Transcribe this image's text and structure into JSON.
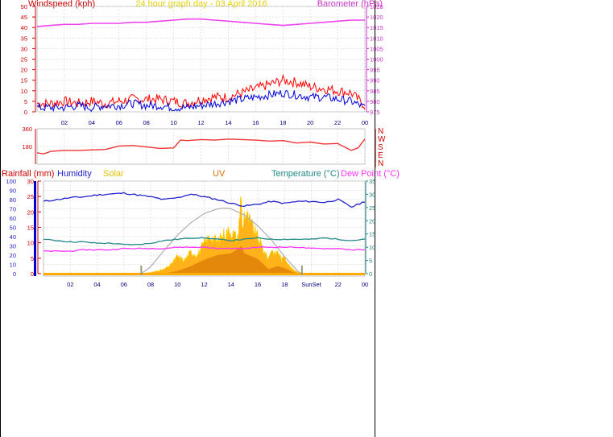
{
  "header": {
    "left_label": "Windspeed (kph)",
    "center_label": "24 hour graph day - 03 April 2016",
    "right_label": "Barometer (hPa)"
  },
  "colors": {
    "windspeed": "#cc0000",
    "gust": "#ff0000",
    "avg_wind": "#0000dd",
    "barometer": "#ee44ee",
    "direction": "#ee3333",
    "humidity": "#2222cc",
    "temperature": "#228888",
    "dewpoint": "#ff33ff",
    "solar_fill": "#ffaa00",
    "solar_line": "#ffcc00",
    "uv_fill": "#cc6600",
    "theoretical": "#b0b0b0",
    "rain": "#ffaa00",
    "grid": "#dddddd",
    "axis_wind": "#cc0000",
    "axis_baro": "#cc33cc",
    "axis_rain": "#cc0000",
    "axis_temp": "#228888",
    "xtick": "#000080",
    "marker": "#999977"
  },
  "panel3_legend": {
    "rainfall": "Rainfall (mm)",
    "humidity": "Humidity",
    "solar": "Solar",
    "uv": "UV",
    "temperature": "Temperature (°C)",
    "dewpoint": "Dew Point (°C)"
  },
  "markers": {
    "sunrise_label": "",
    "sunset_label": "SunSet"
  },
  "chart_data": [
    {
      "type": "line",
      "title": "24 hour graph day - 03 April 2016",
      "ylabel": "Windspeed (kph)",
      "y2label": "Barometer (hPa)",
      "x_ticks": [
        "02",
        "04",
        "06",
        "08",
        "10",
        "12",
        "14",
        "16",
        "18",
        "20",
        "22",
        "00"
      ],
      "ylim": [
        0,
        50
      ],
      "y_ticks": [
        0,
        5,
        10,
        15,
        20,
        25,
        30,
        35,
        40,
        45,
        50
      ],
      "y2lim": [
        975,
        1025
      ],
      "y2_ticks": [
        975,
        980,
        985,
        990,
        995,
        1000,
        1005,
        1010,
        1015,
        1020,
        1025
      ],
      "grid": true,
      "hours": [
        0,
        1,
        2,
        3,
        4,
        5,
        6,
        7,
        8,
        9,
        10,
        11,
        12,
        13,
        14,
        15,
        16,
        17,
        18,
        19,
        20,
        21,
        22,
        23,
        24
      ],
      "series": [
        {
          "key": "gust",
          "values": [
            4,
            4,
            5,
            4,
            5,
            4,
            5,
            6,
            6,
            6,
            5,
            4,
            6,
            7,
            7,
            9,
            11,
            13,
            15,
            14,
            12,
            11,
            10,
            9,
            3
          ]
        },
        {
          "key": "avg_wind",
          "values": [
            2,
            2,
            2,
            3,
            2,
            3,
            3,
            4,
            3,
            3,
            2,
            2,
            3,
            4,
            5,
            6,
            7,
            8,
            9,
            8,
            7,
            7,
            6,
            5,
            2
          ]
        },
        {
          "key": "barometer",
          "axis": "right",
          "values": [
            1015.5,
            1016,
            1016.5,
            1016.5,
            1017,
            1017,
            1017,
            1017.5,
            1017.5,
            1018,
            1018.5,
            1019,
            1019,
            1018.5,
            1018,
            1017.5,
            1017,
            1016.5,
            1016,
            1016.5,
            1017,
            1017.5,
            1018,
            1018.5,
            1018.5
          ]
        }
      ]
    },
    {
      "type": "line",
      "ylabel": "Wind direction",
      "right_labels": [
        "N",
        "W",
        "S",
        "E",
        "N"
      ],
      "ylim": [
        0,
        360
      ],
      "y_ticks": [
        0,
        180,
        360
      ],
      "grid": true,
      "hours": [
        0,
        0.5,
        1,
        2,
        3,
        4,
        5,
        6,
        7,
        8,
        9,
        10,
        10.5,
        11,
        12,
        13,
        14,
        15,
        16,
        17,
        18,
        19,
        20,
        21,
        22,
        23,
        23.5,
        24
      ],
      "series": [
        {
          "key": "direction",
          "values": [
            115,
            105,
            130,
            140,
            140,
            145,
            150,
            185,
            190,
            175,
            160,
            165,
            245,
            240,
            250,
            245,
            255,
            250,
            245,
            235,
            240,
            215,
            225,
            205,
            210,
            140,
            165,
            255
          ]
        }
      ]
    },
    {
      "type": "line",
      "ylabel": "Rainfall (mm)",
      "y2label": "Temperature (°C)",
      "x_ticks": [
        "02",
        "04",
        "06",
        "08",
        "10",
        "12",
        "14",
        "16",
        "18",
        "SunSet",
        "22",
        "00"
      ],
      "ylim_rain": [
        0,
        30
      ],
      "y_ticks_rain": [
        0,
        5,
        10,
        15,
        20,
        25,
        30
      ],
      "ylim_pct": [
        0,
        100
      ],
      "y_ticks_pct": [
        0,
        10,
        20,
        30,
        40,
        50,
        60,
        70,
        80,
        90,
        100
      ],
      "ylim_temp": [
        0,
        35
      ],
      "y_ticks_temp": [
        0,
        5,
        10,
        15,
        20,
        25,
        30,
        35
      ],
      "ylim_solar": [
        0,
        1200
      ],
      "grid": true,
      "hours": [
        0,
        1,
        2,
        3,
        4,
        5,
        6,
        7,
        8,
        9,
        10,
        11,
        12,
        13,
        14,
        15,
        16,
        17,
        18,
        19,
        20,
        21,
        22,
        23,
        24
      ],
      "series": [
        {
          "key": "humidity",
          "axis": "pct",
          "values": [
            78,
            80,
            82,
            83,
            85,
            86,
            87,
            85,
            83,
            80,
            82,
            86,
            83,
            80,
            76,
            73,
            75,
            78,
            76,
            78,
            78,
            77,
            80,
            72,
            78
          ]
        },
        {
          "key": "temperature",
          "axis": "temp",
          "values": [
            13,
            12.5,
            12,
            12,
            11.5,
            11.5,
            11,
            11,
            11.5,
            12.5,
            13,
            13.5,
            13.5,
            13,
            12.5,
            13,
            13.5,
            13,
            13,
            13,
            13,
            13.5,
            13,
            12.5,
            13
          ]
        },
        {
          "key": "dewpoint",
          "axis": "temp",
          "values": [
            8.5,
            8.5,
            8.5,
            9,
            9,
            9,
            9.5,
            9.5,
            9.5,
            9.5,
            10,
            10,
            10,
            9.5,
            9.5,
            9.5,
            10,
            10,
            10,
            10,
            9.5,
            9.5,
            9.5,
            9,
            9
          ]
        },
        {
          "key": "rain",
          "axis": "rain",
          "values": [
            0,
            0,
            0,
            0,
            0,
            0,
            0,
            0,
            0,
            0,
            0,
            0,
            0,
            0,
            0,
            0,
            0,
            0,
            0,
            0,
            0,
            0,
            0,
            0,
            0
          ]
        }
      ],
      "solar": {
        "hours": [
          7.3,
          8,
          9,
          9.5,
          10,
          10.5,
          11,
          11.5,
          12,
          12.5,
          13,
          13.5,
          14,
          14.5,
          14.75,
          14.85,
          15,
          15.5,
          16,
          16.5,
          16.8,
          17,
          17.3,
          17.5,
          17.8,
          18,
          18.3,
          18.6,
          19,
          19.3
        ],
        "values": [
          0,
          15,
          60,
          120,
          240,
          180,
          300,
          260,
          420,
          520,
          440,
          560,
          600,
          480,
          1080,
          560,
          860,
          680,
          500,
          300,
          200,
          350,
          260,
          320,
          180,
          260,
          120,
          60,
          20,
          0
        ]
      },
      "uv": {
        "hours": [
          9,
          10,
          11,
          12,
          13,
          14,
          14.8,
          15,
          16,
          16.8,
          17.5,
          18,
          18.6,
          19
        ],
        "values": [
          0,
          0.3,
          0.8,
          1.5,
          2,
          2.2,
          3,
          2.2,
          1.6,
          0.5,
          0.8,
          0.6,
          0.2,
          0
        ]
      },
      "theoretical": {
        "hours": [
          7.3,
          8,
          9,
          10,
          11,
          12,
          13,
          13.5,
          14,
          15,
          16,
          17,
          18,
          19,
          19.3
        ],
        "values": [
          0,
          90,
          300,
          500,
          660,
          780,
          840,
          850,
          840,
          760,
          620,
          440,
          220,
          30,
          0
        ]
      },
      "sunrise_hour": 7.3,
      "sunset_hour": 19.3
    }
  ]
}
